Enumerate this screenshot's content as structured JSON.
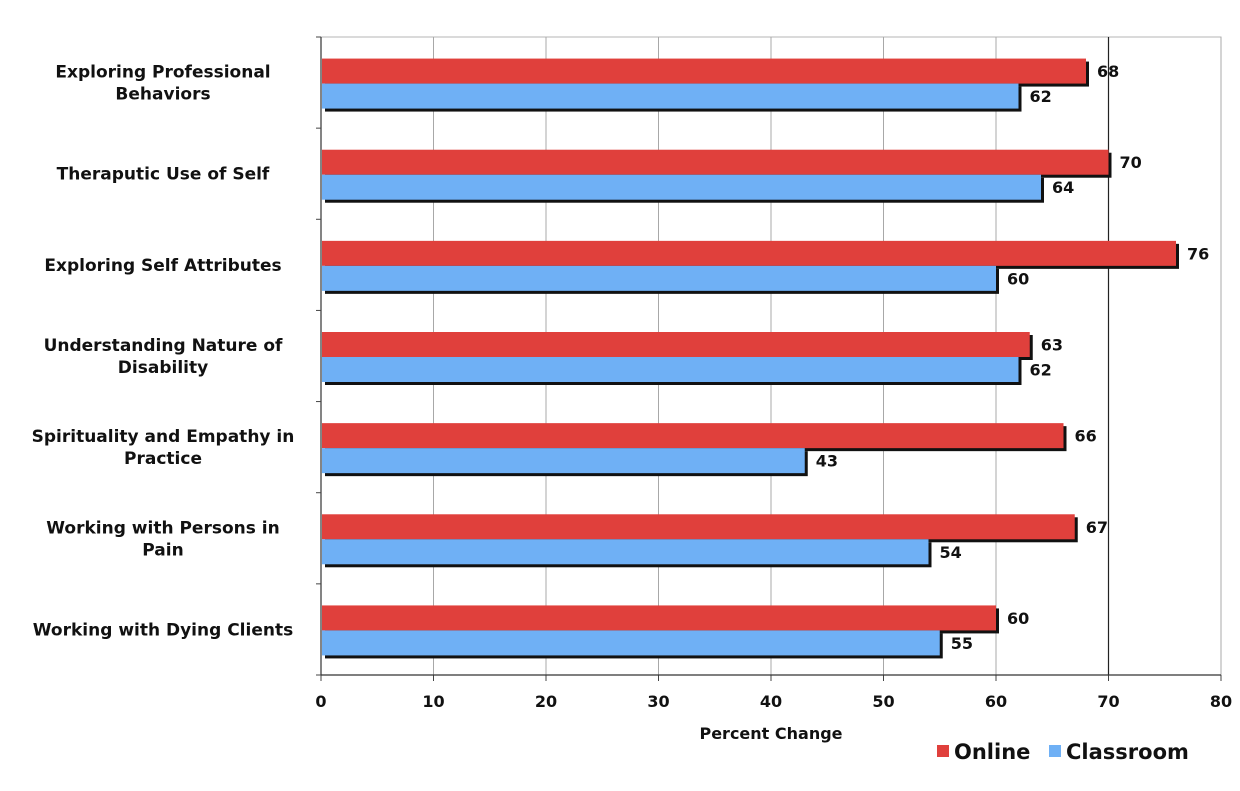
{
  "chart_data": {
    "type": "bar",
    "orientation": "horizontal",
    "categories": [
      [
        "Exploring Professional",
        "Behaviors"
      ],
      [
        "Theraputic Use of Self"
      ],
      [
        "Exploring Self Attributes"
      ],
      [
        "Understanding Nature of",
        "Disability"
      ],
      [
        "Spirituality and Empathy in",
        "Practice"
      ],
      [
        "Working with Persons in",
        "Pain"
      ],
      [
        "Working with Dying Clients"
      ]
    ],
    "series": [
      {
        "name": "Online",
        "color": "#e0403c",
        "values": [
          68,
          70,
          76,
          63,
          66,
          67,
          60
        ]
      },
      {
        "name": "Classroom",
        "color": "#6fb0f5",
        "values": [
          62,
          64,
          60,
          62,
          43,
          54,
          55
        ]
      }
    ],
    "xlabel": "Percent Change",
    "xlim": [
      0,
      80
    ],
    "xticks": [
      0,
      10,
      20,
      30,
      40,
      50,
      60,
      70,
      80
    ],
    "grid": "vertical",
    "legend_position": "bottom-right"
  }
}
